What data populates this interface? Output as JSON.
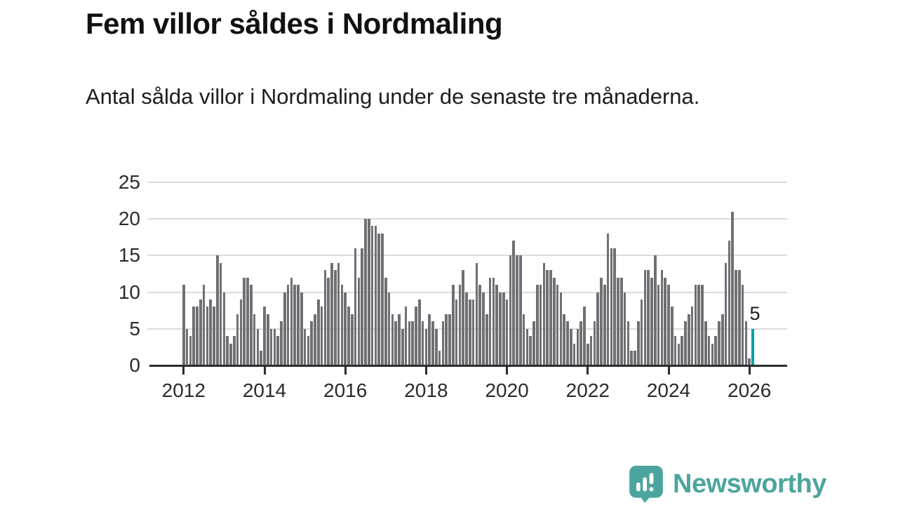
{
  "title": "Fem villor såldes i Nordmaling",
  "subtitle": "Antal sålda villor i Nordmaling under de senaste tre månaderna.",
  "footer": {
    "brand": "Newsworthy",
    "logo_icon": "bar-chart-speech-bubble-icon"
  },
  "chart_data": {
    "type": "bar",
    "title": "Fem villor såldes i Nordmaling",
    "xlabel": "",
    "ylabel": "",
    "ylim": [
      0,
      25
    ],
    "grid": true,
    "yticks": [
      0,
      5,
      10,
      15,
      20,
      25
    ],
    "xticks": [
      {
        "label": "2012",
        "index": 0
      },
      {
        "label": "2014",
        "index": 24
      },
      {
        "label": "2016",
        "index": 48
      },
      {
        "label": "2018",
        "index": 72
      },
      {
        "label": "2020",
        "index": 96
      },
      {
        "label": "2022",
        "index": 120
      },
      {
        "label": "2024",
        "index": 144
      },
      {
        "label": "2026",
        "index": 168
      }
    ],
    "x_start_label": "2012",
    "x_end_label": "2026",
    "values": [
      11,
      5,
      4,
      8,
      8,
      9,
      11,
      8,
      9,
      8,
      15,
      14,
      10,
      4,
      3,
      4,
      7,
      9,
      12,
      12,
      11,
      7,
      5,
      2,
      8,
      7,
      5,
      5,
      4,
      6,
      10,
      11,
      12,
      11,
      11,
      10,
      5,
      4,
      6,
      7,
      9,
      8,
      13,
      12,
      14,
      13,
      14,
      11,
      10,
      8,
      7,
      16,
      12,
      16,
      20,
      20,
      19,
      19,
      18,
      18,
      12,
      10,
      7,
      6,
      7,
      5,
      8,
      6,
      6,
      8,
      9,
      6,
      5,
      7,
      6,
      5,
      2,
      6,
      7,
      7,
      11,
      9,
      11,
      13,
      10,
      9,
      9,
      14,
      11,
      10,
      7,
      12,
      12,
      11,
      10,
      10,
      9,
      15,
      17,
      15,
      15,
      7,
      5,
      4,
      6,
      11,
      11,
      14,
      13,
      13,
      12,
      11,
      10,
      7,
      6,
      5,
      3,
      5,
      6,
      8,
      3,
      4,
      6,
      10,
      12,
      11,
      18,
      16,
      16,
      12,
      12,
      10,
      6,
      2,
      2,
      6,
      9,
      13,
      13,
      12,
      15,
      11,
      13,
      12,
      11,
      8,
      4,
      3,
      4,
      6,
      7,
      8,
      11,
      11,
      11,
      6,
      4,
      3,
      4,
      6,
      7,
      14,
      17,
      21,
      13,
      13,
      11,
      6,
      1,
      5
    ],
    "bar_color": "#6f7074",
    "highlight_last_color": "#00a4a0",
    "last_value_label": "5",
    "axis_color": "#2d2d2d",
    "grid_color": "#dcdcdc"
  }
}
